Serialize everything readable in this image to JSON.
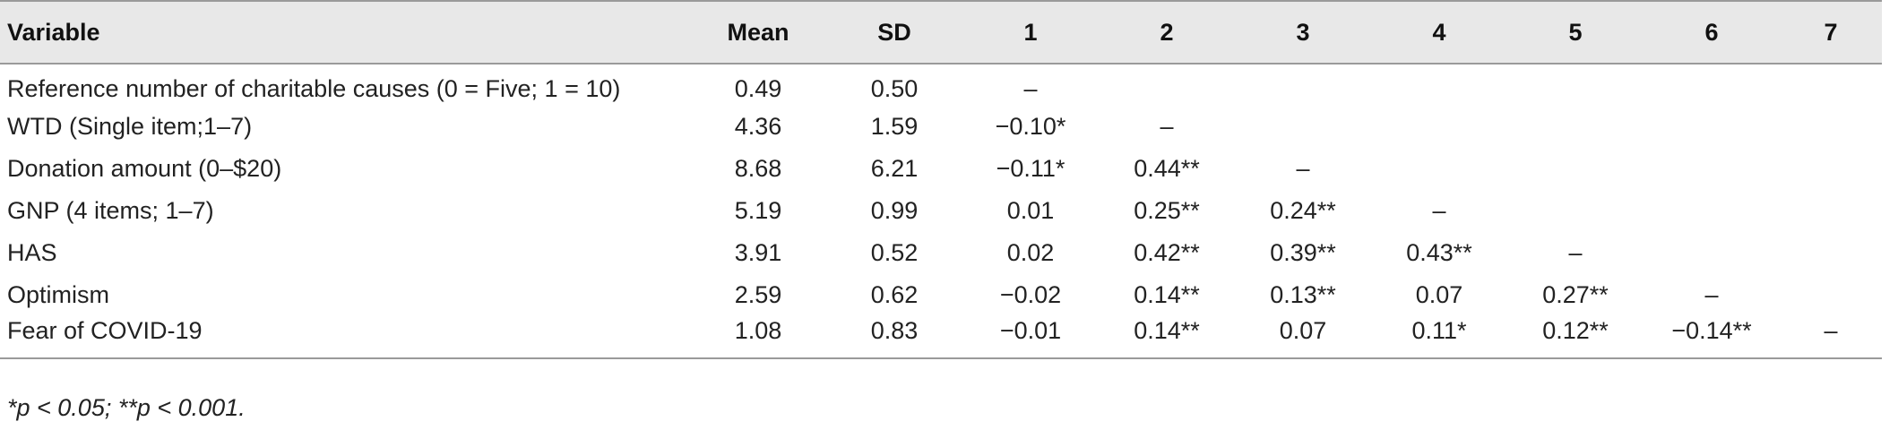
{
  "table": {
    "headers": [
      "Variable",
      "Mean",
      "SD",
      "1",
      "2",
      "3",
      "4",
      "5",
      "6",
      "7"
    ],
    "rows": [
      [
        "Reference number of charitable causes (0 = Five; 1 = 10)",
        "0.49",
        "0.50",
        "–",
        "",
        "",
        "",
        "",
        "",
        ""
      ],
      [
        "WTD (Single item;1–7)",
        "4.36",
        "1.59",
        "−0.10*",
        "–",
        "",
        "",
        "",
        "",
        ""
      ],
      [
        "Donation amount (0–$20)",
        "8.68",
        "6.21",
        "−0.11*",
        "0.44**",
        "–",
        "",
        "",
        "",
        ""
      ],
      [
        "GNP (4 items; 1–7)",
        "5.19",
        "0.99",
        "0.01",
        "0.25**",
        "0.24**",
        "–",
        "",
        "",
        ""
      ],
      [
        "HAS",
        "3.91",
        "0.52",
        "0.02",
        "0.42**",
        "0.39**",
        "0.43**",
        "–",
        "",
        ""
      ],
      [
        "Optimism",
        "2.59",
        "0.62",
        "−0.02",
        "0.14**",
        "0.13**",
        "0.07",
        "0.27**",
        "–",
        ""
      ],
      [
        "Fear of COVID-19",
        "1.08",
        "0.83",
        "−0.01",
        "0.14**",
        "0.07",
        "0.11*",
        "0.12**",
        "−0.14**",
        "–"
      ]
    ]
  },
  "footnote": "*p < 0.05; **p < 0.001."
}
